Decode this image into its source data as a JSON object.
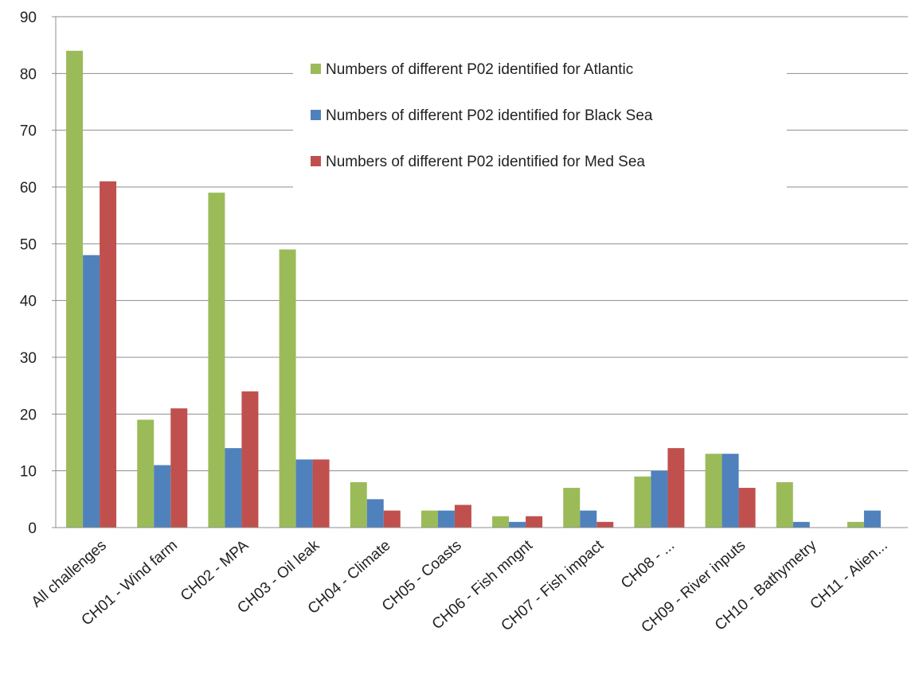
{
  "chart_data": {
    "type": "bar",
    "title": "",
    "xlabel": "",
    "ylabel": "",
    "ylim": [
      0,
      90
    ],
    "yticks": [
      0,
      10,
      20,
      30,
      40,
      50,
      60,
      70,
      80,
      90
    ],
    "grid": true,
    "legend_position": "top-center",
    "categories": [
      "All challenges",
      "CH01 - Wind farm",
      "CH02 - MPA",
      "CH03 - Oil leak",
      "CH04 - Climate",
      "CH05 - Coasts",
      "CH06 - Fish mngnt",
      "CH07 - Fish impact",
      "CH08 - ...",
      "CH09 - River inputs",
      "CH10 - Bathymetry",
      "CH11 - Alien..."
    ],
    "series": [
      {
        "name": "Numbers of different P02 identified for Atlantic",
        "color": "#9bbb59",
        "values": [
          84,
          19,
          59,
          49,
          8,
          3,
          2,
          7,
          9,
          13,
          8,
          1
        ]
      },
      {
        "name": "Numbers of different P02 identified for Black Sea",
        "color": "#4f81bd",
        "values": [
          48,
          11,
          14,
          12,
          5,
          3,
          1,
          3,
          10,
          13,
          1,
          3
        ]
      },
      {
        "name": "Numbers of different P02 identified for Med Sea",
        "color": "#c0504d",
        "values": [
          61,
          21,
          24,
          12,
          3,
          4,
          2,
          1,
          14,
          7,
          0,
          0
        ]
      }
    ]
  }
}
